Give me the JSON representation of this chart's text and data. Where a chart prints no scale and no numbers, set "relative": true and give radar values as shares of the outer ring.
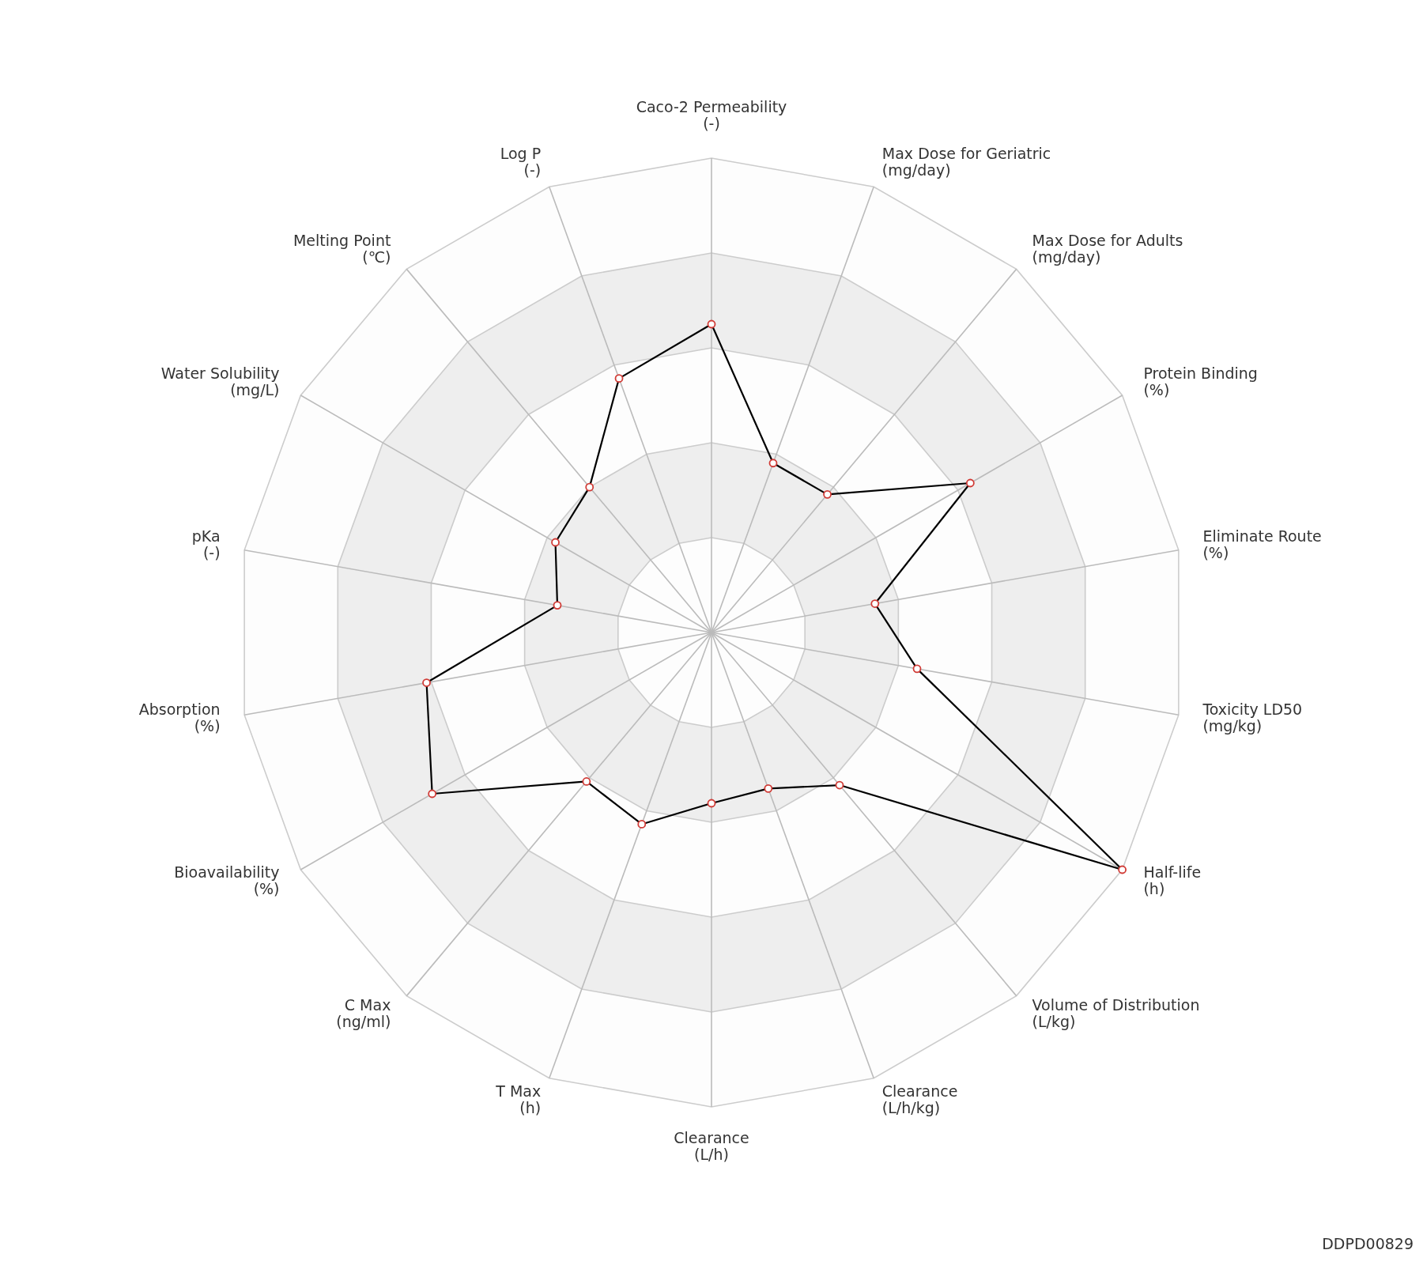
{
  "chart_data": {
    "type": "radar",
    "relative": true,
    "grid": true,
    "legend": false,
    "marker": "circle",
    "line_style": "solid",
    "categories": [
      "Caco-2 Permeability (-)",
      "Max Dose for Geriatric (mg/day)",
      "Max Dose for Adults (mg/day)",
      "Protein Binding (%)",
      "Eliminate Route (%)",
      "Toxicity LD50 (mg/kg)",
      "Half-life (h)",
      "Volume of Distribution (L/kg)",
      "Clearance (L/h/kg)",
      "Clearance (L/h)",
      "T Max (h)",
      "C Max (ng/ml)",
      "Bioavailability (%)",
      "Absorption (%)",
      "pKa (-)",
      "Water Solubility (mg/L)",
      "Melting Point (℃)",
      "Log P (-)"
    ],
    "series": [
      {
        "color": "#000000",
        "colors": [
          "#d13b36",
          "#d13b36",
          "#d13b36",
          "#d13b36",
          "#d13b36",
          "#d13b36",
          "#d13b36",
          "#d13b36",
          "#d13b36",
          "#d13b36",
          "#d13b36",
          "#d13b36",
          "#d13b36",
          "#d13b36",
          "#d13b36",
          "#d13b36",
          "#d13b36",
          "#d13b36"
        ],
        "values": [
          0.65,
          0.38,
          0.38,
          0.63,
          0.35,
          0.44,
          1,
          0.42,
          0.35,
          0.36,
          0.43,
          0.41,
          0.68,
          0.61,
          0.33,
          0.38,
          0.4,
          0.57
        ]
      }
    ],
    "annotations": [
      "DDPD00829"
    ]
  }
}
